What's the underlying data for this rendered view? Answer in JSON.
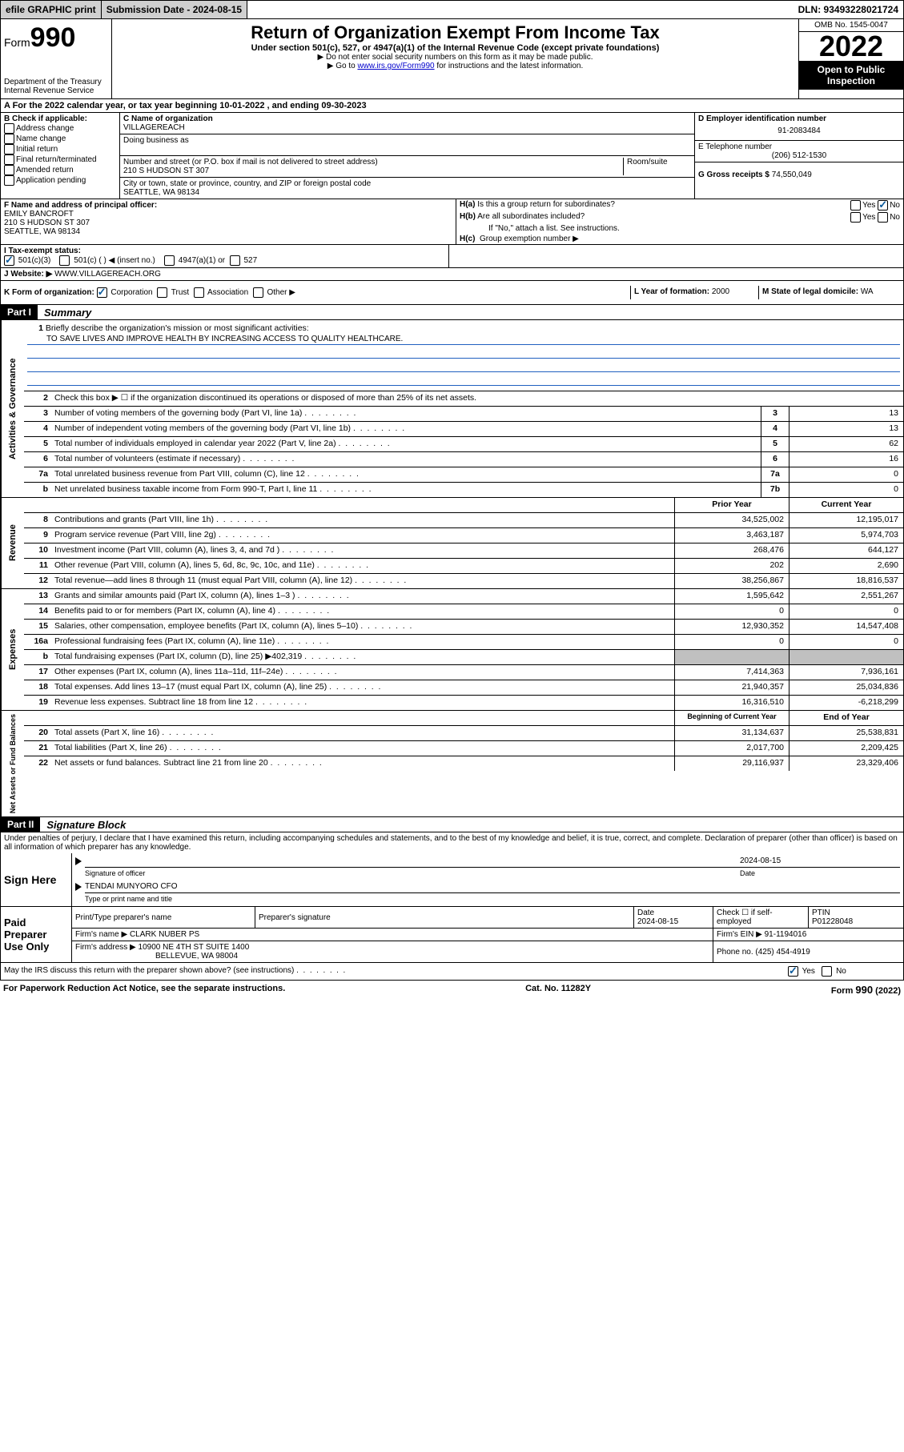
{
  "topbar": {
    "efile": "efile GRAPHIC print",
    "submission_label": "Submission Date - 2024-08-15",
    "dln": "DLN: 93493228021724"
  },
  "header": {
    "form_label": "Form",
    "form_number": "990",
    "dept": "Department of the Treasury",
    "irs": "Internal Revenue Service",
    "title": "Return of Organization Exempt From Income Tax",
    "subtitle": "Under section 501(c), 527, or 4947(a)(1) of the Internal Revenue Code (except private foundations)",
    "note1": "▶ Do not enter social security numbers on this form as it may be made public.",
    "note2_pre": "▶ Go to ",
    "note2_link": "www.irs.gov/Form990",
    "note2_post": " for instructions and the latest information.",
    "omb": "OMB No. 1545-0047",
    "year": "2022",
    "inspection": "Open to Public Inspection"
  },
  "period": {
    "text_pre": "A For the 2022 calendar year, or tax year beginning ",
    "begin": "10-01-2022",
    "mid": " , and ending ",
    "end": "09-30-2023"
  },
  "section_b": {
    "label": "B Check if applicable:",
    "opts": [
      "Address change",
      "Name change",
      "Initial return",
      "Final return/terminated",
      "Amended return",
      "Application pending"
    ]
  },
  "section_c": {
    "name_label": "C Name of organization",
    "name": "VILLAGEREACH",
    "dba_label": "Doing business as",
    "addr_label": "Number and street (or P.O. box if mail is not delivered to street address)",
    "room_label": "Room/suite",
    "addr": "210 S HUDSON ST 307",
    "city_label": "City or town, state or province, country, and ZIP or foreign postal code",
    "city": "SEATTLE, WA  98134"
  },
  "section_d": {
    "label": "D Employer identification number",
    "ein": "91-2083484"
  },
  "section_e": {
    "label": "E Telephone number",
    "phone": "(206) 512-1530"
  },
  "section_g": {
    "label": "G Gross receipts $",
    "amount": "74,550,049"
  },
  "section_f": {
    "label": "F Name and address of principal officer:",
    "name": "EMILY BANCROFT",
    "addr1": "210 S HUDSON ST 307",
    "addr2": "SEATTLE, WA  98134"
  },
  "section_h": {
    "ha": "H(a)  Is this a group return for subordinates?",
    "hb": "H(b)  Are all subordinates included?",
    "hb_note": "If \"No,\" attach a list. See instructions.",
    "hc": "H(c)  Group exemption number ▶",
    "yes": "Yes",
    "no": "No"
  },
  "section_i": {
    "label": "I   Tax-exempt status:",
    "o1": "501(c)(3)",
    "o2": "501(c) (  ) ◀ (insert no.)",
    "o3": "4947(a)(1) or",
    "o4": "527"
  },
  "section_j": {
    "label": "J   Website: ▶",
    "url": "WWW.VILLAGEREACH.ORG"
  },
  "section_k": {
    "label": "K Form of organization:",
    "o1": "Corporation",
    "o2": "Trust",
    "o3": "Association",
    "o4": "Other ▶"
  },
  "section_l": {
    "label": "L Year of formation:",
    "val": "2000"
  },
  "section_m": {
    "label": "M State of legal domicile:",
    "val": "WA"
  },
  "part1": {
    "header": "Part I",
    "title": "Summary",
    "mission_label": "Briefly describe the organization's mission or most significant activities:",
    "mission": "TO SAVE LIVES AND IMPROVE HEALTH BY INCREASING ACCESS TO QUALITY HEALTHCARE.",
    "line2": "Check this box ▶ ☐  if the organization discontinued its operations or disposed of more than 25% of its net assets.",
    "lines_gov": [
      {
        "n": "3",
        "t": "Number of voting members of the governing body (Part VI, line 1a)",
        "box": "3",
        "v": "13"
      },
      {
        "n": "4",
        "t": "Number of independent voting members of the governing body (Part VI, line 1b)",
        "box": "4",
        "v": "13"
      },
      {
        "n": "5",
        "t": "Total number of individuals employed in calendar year 2022 (Part V, line 2a)",
        "box": "5",
        "v": "62"
      },
      {
        "n": "6",
        "t": "Total number of volunteers (estimate if necessary)",
        "box": "6",
        "v": "16"
      },
      {
        "n": "7a",
        "t": "Total unrelated business revenue from Part VIII, column (C), line 12",
        "box": "7a",
        "v": "0"
      },
      {
        "n": "b",
        "t": "Net unrelated business taxable income from Form 990-T, Part I, line 11",
        "box": "7b",
        "v": "0"
      }
    ],
    "col_prior": "Prior Year",
    "col_current": "Current Year",
    "revenue": [
      {
        "n": "8",
        "t": "Contributions and grants (Part VIII, line 1h)",
        "p": "34,525,002",
        "c": "12,195,017"
      },
      {
        "n": "9",
        "t": "Program service revenue (Part VIII, line 2g)",
        "p": "3,463,187",
        "c": "5,974,703"
      },
      {
        "n": "10",
        "t": "Investment income (Part VIII, column (A), lines 3, 4, and 7d )",
        "p": "268,476",
        "c": "644,127"
      },
      {
        "n": "11",
        "t": "Other revenue (Part VIII, column (A), lines 5, 6d, 8c, 9c, 10c, and 11e)",
        "p": "202",
        "c": "2,690"
      },
      {
        "n": "12",
        "t": "Total revenue—add lines 8 through 11 (must equal Part VIII, column (A), line 12)",
        "p": "38,256,867",
        "c": "18,816,537"
      }
    ],
    "expenses": [
      {
        "n": "13",
        "t": "Grants and similar amounts paid (Part IX, column (A), lines 1–3 )",
        "p": "1,595,642",
        "c": "2,551,267"
      },
      {
        "n": "14",
        "t": "Benefits paid to or for members (Part IX, column (A), line 4)",
        "p": "0",
        "c": "0"
      },
      {
        "n": "15",
        "t": "Salaries, other compensation, employee benefits (Part IX, column (A), lines 5–10)",
        "p": "12,930,352",
        "c": "14,547,408"
      },
      {
        "n": "16a",
        "t": "Professional fundraising fees (Part IX, column (A), line 11e)",
        "p": "0",
        "c": "0"
      },
      {
        "n": "b",
        "t": "Total fundraising expenses (Part IX, column (D), line 25) ▶402,319",
        "p": "",
        "c": "",
        "grey": true
      },
      {
        "n": "17",
        "t": "Other expenses (Part IX, column (A), lines 11a–11d, 11f–24e)",
        "p": "7,414,363",
        "c": "7,936,161"
      },
      {
        "n": "18",
        "t": "Total expenses. Add lines 13–17 (must equal Part IX, column (A), line 25)",
        "p": "21,940,357",
        "c": "25,034,836"
      },
      {
        "n": "19",
        "t": "Revenue less expenses. Subtract line 18 from line 12",
        "p": "16,316,510",
        "c": "-6,218,299"
      }
    ],
    "col_begin": "Beginning of Current Year",
    "col_end": "End of Year",
    "netassets": [
      {
        "n": "20",
        "t": "Total assets (Part X, line 16)",
        "p": "31,134,637",
        "c": "25,538,831"
      },
      {
        "n": "21",
        "t": "Total liabilities (Part X, line 26)",
        "p": "2,017,700",
        "c": "2,209,425"
      },
      {
        "n": "22",
        "t": "Net assets or fund balances. Subtract line 21 from line 20",
        "p": "29,116,937",
        "c": "23,329,406"
      }
    ],
    "vert_gov": "Activities & Governance",
    "vert_rev": "Revenue",
    "vert_exp": "Expenses",
    "vert_net": "Net Assets or Fund Balances"
  },
  "part2": {
    "header": "Part II",
    "title": "Signature Block",
    "declaration": "Under penalties of perjury, I declare that I have examined this return, including accompanying schedules and statements, and to the best of my knowledge and belief, it is true, correct, and complete. Declaration of preparer (other than officer) is based on all information of which preparer has any knowledge.",
    "sign_here": "Sign Here",
    "sig_officer": "Signature of officer",
    "sig_date": "Date",
    "sig_date_val": "2024-08-15",
    "officer_name": "TENDAI MUNYORO CFO",
    "officer_label": "Type or print name and title",
    "paid": "Paid Preparer Use Only",
    "prep_name_label": "Print/Type preparer's name",
    "prep_sig_label": "Preparer's signature",
    "prep_date_label": "Date",
    "prep_date": "2024-08-15",
    "prep_check": "Check ☐ if self-employed",
    "ptin_label": "PTIN",
    "ptin": "P01228048",
    "firm_name_label": "Firm's name    ▶",
    "firm_name": "CLARK NUBER PS",
    "firm_ein_label": "Firm's EIN ▶",
    "firm_ein": "91-1194016",
    "firm_addr_label": "Firm's address ▶",
    "firm_addr1": "10900 NE 4TH ST SUITE 1400",
    "firm_addr2": "BELLEVUE, WA  98004",
    "firm_phone_label": "Phone no.",
    "firm_phone": "(425) 454-4919",
    "discuss": "May the IRS discuss this return with the preparer shown above? (see instructions)",
    "yes": "Yes",
    "no": "No"
  },
  "footer": {
    "left": "For Paperwork Reduction Act Notice, see the separate instructions.",
    "mid": "Cat. No. 11282Y",
    "right": "Form 990 (2022)"
  }
}
